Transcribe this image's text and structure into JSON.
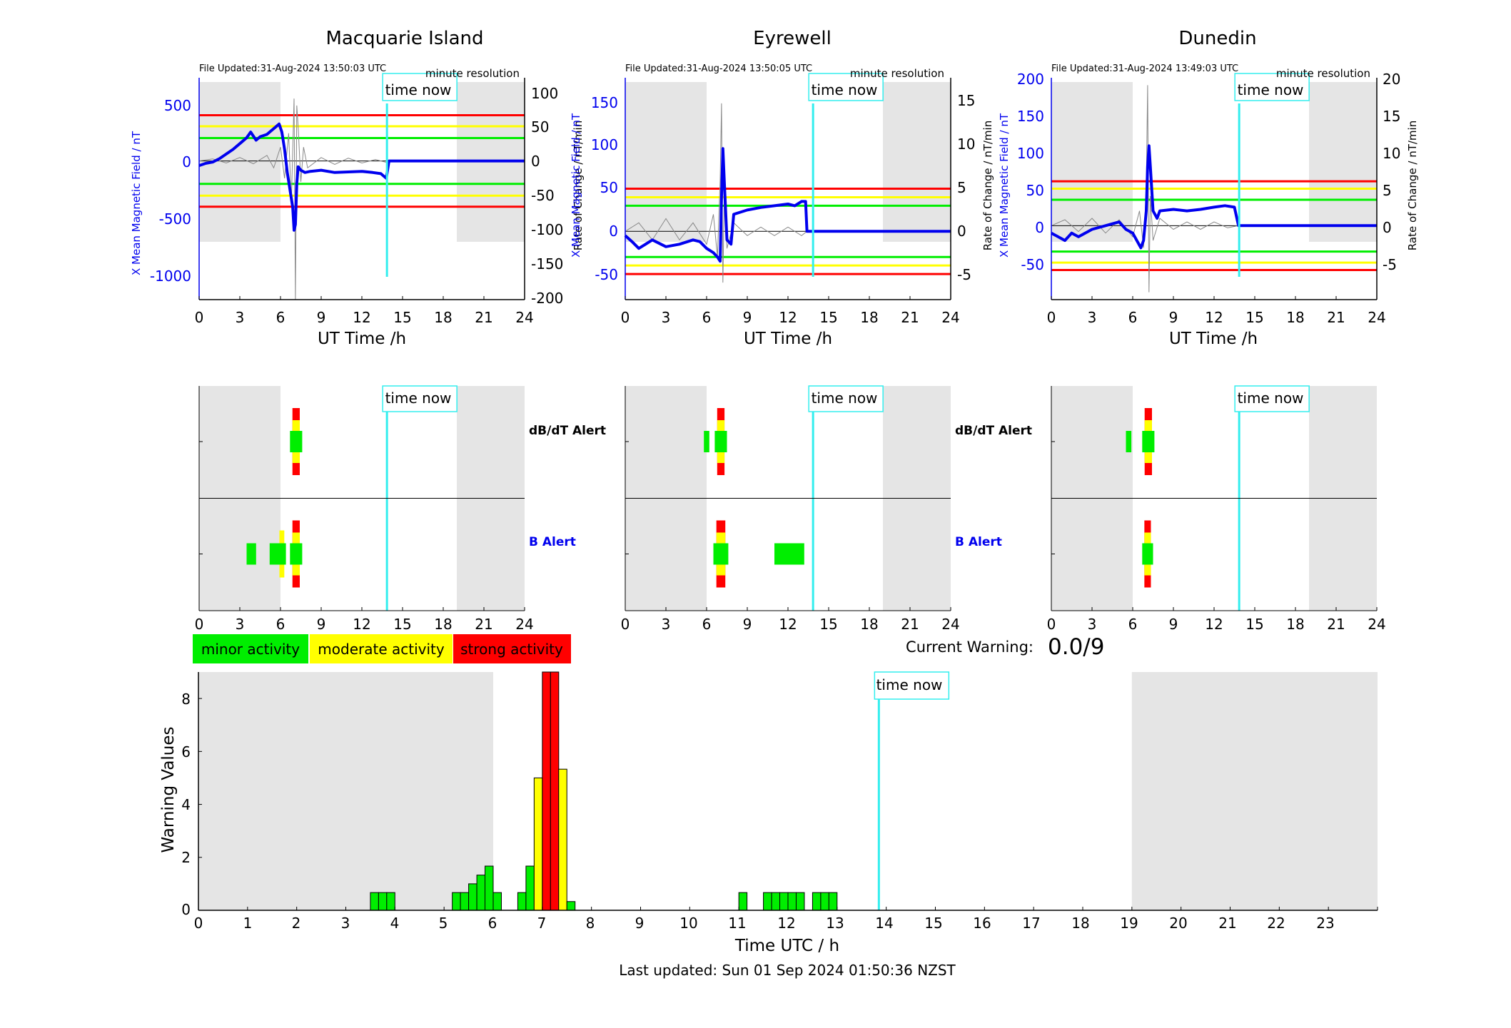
{
  "colors": {
    "minor": "#00ee00",
    "moderate": "#ffff00",
    "strong": "#ff0000",
    "field": "#0000ee",
    "timeNow": "#33eeee",
    "night": "#e5e5e5"
  },
  "stations": [
    {
      "name": "Macquarie Island",
      "file_updated": "File Updated:31-Aug-2024 13:50:03 UTC",
      "resolution": "minute resolution",
      "left_ylabel": "X Mean Magnetic Field / nT",
      "right_ylabel": "Rate of Change / nT/min",
      "xlabel": "UT Time /h",
      "time_now_label": "time now",
      "left_ticks": [
        "500",
        "0",
        "-500",
        "-1000"
      ],
      "right_ticks": [
        "100",
        "50",
        "0",
        "-50",
        "-100",
        "-150",
        "-200"
      ],
      "x_ticks": [
        "0",
        "3",
        "6",
        "9",
        "12",
        "15",
        "18",
        "21",
        "24"
      ]
    },
    {
      "name": "Eyrewell",
      "file_updated": "File Updated:31-Aug-2024 13:50:05 UTC",
      "resolution": "minute resolution",
      "left_ylabel": "X Mean Magnetic Field / nT",
      "right_ylabel": "Rate of Change / nT/min",
      "xlabel": "UT Time /h",
      "time_now_label": "time now",
      "left_ticks": [
        "150",
        "100",
        "50",
        "0",
        "-50"
      ],
      "right_ticks": [
        "15",
        "10",
        "5",
        "0",
        "-5"
      ],
      "x_ticks": [
        "0",
        "3",
        "6",
        "9",
        "12",
        "15",
        "18",
        "21",
        "24"
      ]
    },
    {
      "name": "Dunedin",
      "file_updated": "File Updated:31-Aug-2024 13:49:03 UTC",
      "resolution": "minute resolution",
      "left_ylabel": "X Mean Magnetic Field / nT",
      "right_ylabel": "Rate of Change / nT/min",
      "xlabel": "UT Time /h",
      "time_now_label": "time now",
      "left_ticks": [
        "200",
        "150",
        "100",
        "50",
        "0",
        "-50"
      ],
      "right_ticks": [
        "20",
        "15",
        "10",
        "5",
        "0",
        "-5"
      ],
      "x_ticks": [
        "0",
        "3",
        "6",
        "9",
        "12",
        "15",
        "18",
        "21",
        "24"
      ]
    }
  ],
  "alerts": {
    "dbdt_label": "dB/dT Alert",
    "b_label": "B Alert",
    "time_now_label": "time now",
    "x_ticks": [
      "0",
      "3",
      "6",
      "9",
      "12",
      "15",
      "18",
      "21",
      "24"
    ]
  },
  "legend": {
    "minor": "minor activity",
    "moderate": "moderate activity",
    "strong": "strong activity"
  },
  "current_warning": {
    "label": "Current Warning:",
    "value": "0.0/9"
  },
  "footer": "Last updated: Sun 01 Sep 2024 01:50:36 NZST",
  "chart_data": [
    {
      "type": "line",
      "title": "Macquarie Island",
      "xlabel": "UT Time /h",
      "ylabel": "X Mean Magnetic Field / nT",
      "ylabel_right": "Rate of Change / nT/min",
      "xlim": [
        0,
        24
      ],
      "ylim": [
        -1200,
        720
      ],
      "ylim_right": [
        -200,
        120
      ],
      "night_hours": [
        [
          0,
          6
        ],
        [
          19,
          24
        ]
      ],
      "time_now": 13.85,
      "thresholds_right": {
        "minor": 33,
        "moderate": 50,
        "strong": 66
      },
      "series": [
        {
          "kind": "field",
          "x": [
            0,
            0.5,
            1,
            1.5,
            2,
            2.5,
            3,
            3.5,
            3.8,
            4.2,
            4.5,
            5,
            5.3,
            5.6,
            5.9,
            6.1,
            6.3,
            6.5,
            6.7,
            6.9,
            7.0,
            7.1,
            7.2,
            7.3,
            7.5,
            7.8,
            8.2,
            9,
            10,
            11,
            12,
            12.8,
            13.4,
            13.8,
            14,
            24
          ],
          "y": [
            -40,
            -20,
            -10,
            20,
            60,
            100,
            150,
            200,
            250,
            180,
            210,
            230,
            260,
            290,
            320,
            250,
            100,
            -100,
            -250,
            -400,
            -600,
            -550,
            -200,
            -50,
            -80,
            -100,
            -90,
            -80,
            -100,
            -95,
            -90,
            -100,
            -110,
            -150,
            0,
            0
          ]
        },
        {
          "kind": "rate",
          "x": [
            0,
            1,
            2,
            3,
            4,
            5,
            5.5,
            6,
            6.3,
            6.6,
            6.8,
            7.0,
            7.1,
            7.2,
            7.3,
            7.5,
            7.7,
            8,
            9,
            10,
            11,
            12,
            13,
            13.8,
            14,
            24
          ],
          "y": [
            0,
            3,
            -3,
            5,
            -4,
            8,
            -10,
            20,
            -25,
            40,
            -60,
            90,
            -200,
            80,
            50,
            -30,
            20,
            -10,
            5,
            -5,
            4,
            -3,
            2,
            -2,
            0,
            0
          ]
        }
      ]
    },
    {
      "type": "line",
      "title": "Eyrewell",
      "xlabel": "UT Time /h",
      "ylabel": "X Mean Magnetic Field / nT",
      "ylabel_right": "Rate of Change / nT/min",
      "xlim": [
        0,
        24
      ],
      "ylim": [
        -80,
        180
      ],
      "ylim_right": [
        -8,
        18
      ],
      "night_hours": [
        [
          0,
          6
        ],
        [
          19,
          24
        ]
      ],
      "time_now": 13.85,
      "thresholds_right": {
        "minor": 3,
        "moderate": 4,
        "strong": 5
      },
      "series": [
        {
          "kind": "field",
          "x": [
            0,
            0.5,
            1,
            1.5,
            2,
            3,
            4,
            5,
            5.5,
            6,
            6.5,
            6.8,
            7.0,
            7.1,
            7.2,
            7.3,
            7.5,
            7.8,
            8,
            9,
            10,
            11,
            12,
            12.5,
            13,
            13.3,
            13.4,
            24
          ],
          "y": [
            -5,
            -12,
            -20,
            -15,
            -10,
            -18,
            -15,
            -10,
            -12,
            -20,
            -25,
            -30,
            -35,
            40,
            97,
            60,
            -10,
            -15,
            20,
            25,
            28,
            30,
            32,
            30,
            35,
            35,
            0,
            0
          ]
        },
        {
          "kind": "rate",
          "x": [
            0,
            1,
            2,
            3,
            4,
            5,
            6,
            6.5,
            6.8,
            7.0,
            7.1,
            7.2,
            7.3,
            7.5,
            8,
            9,
            10,
            11,
            12,
            13,
            13.4,
            24
          ],
          "y": [
            0,
            1,
            -1,
            1.5,
            -1,
            1,
            -1.5,
            2,
            -3,
            6,
            15,
            -6,
            4,
            -2,
            1,
            -0.5,
            0.5,
            -0.5,
            0.5,
            -0.5,
            0,
            0
          ]
        }
      ]
    },
    {
      "type": "line",
      "title": "Dunedin",
      "xlabel": "UT Time /h",
      "ylabel": "X Mean Magnetic Field / nT",
      "ylabel_right": "Rate of Change / nT/min",
      "xlim": [
        0,
        24
      ],
      "ylim": [
        -100,
        200
      ],
      "ylim_right": [
        -10,
        20
      ],
      "night_hours": [
        [
          0,
          6
        ],
        [
          19,
          24
        ]
      ],
      "time_now": 13.85,
      "thresholds_right": {
        "minor": 3.5,
        "moderate": 5,
        "strong": 6
      },
      "series": [
        {
          "kind": "field",
          "x": [
            0,
            0.5,
            1,
            1.5,
            2,
            3,
            4,
            5,
            5.5,
            6,
            6.3,
            6.6,
            6.8,
            7.0,
            7.1,
            7.2,
            7.3,
            7.5,
            7.8,
            8,
            9,
            10,
            11,
            12,
            12.8,
            13.5,
            13.8,
            24
          ],
          "y": [
            -10,
            -15,
            -20,
            -10,
            -15,
            -5,
            0,
            5,
            -5,
            -10,
            -20,
            -30,
            -20,
            20,
            80,
            108,
            80,
            20,
            10,
            20,
            22,
            20,
            22,
            25,
            27,
            25,
            0,
            0
          ]
        },
        {
          "kind": "rate",
          "x": [
            0,
            1,
            2,
            3,
            4,
            5,
            6,
            6.5,
            6.8,
            7.0,
            7.1,
            7.2,
            7.3,
            7.5,
            8,
            9,
            10,
            11,
            12,
            13,
            13.8,
            24
          ],
          "y": [
            0,
            0.8,
            -0.8,
            1,
            -1,
            0.8,
            -1.5,
            2,
            -3,
            5,
            19,
            -9,
            4,
            -2,
            1,
            -0.5,
            0.5,
            -0.5,
            0.5,
            -0.3,
            0,
            0
          ]
        }
      ]
    },
    {
      "type": "bar",
      "title": "",
      "xlabel": "Time UTC / h",
      "ylabel": "Warning Values",
      "xlim": [
        0,
        24
      ],
      "ylim": [
        0,
        9
      ],
      "night_hours": [
        [
          0,
          6
        ],
        [
          19,
          24
        ]
      ],
      "time_now": 13.85,
      "x": [
        3.5,
        3.667,
        3.833,
        5.167,
        5.333,
        5.5,
        5.667,
        5.833,
        6.0,
        6.5,
        6.667,
        6.833,
        7.0,
        7.167,
        7.333,
        7.5,
        11.0,
        11.5,
        11.667,
        11.833,
        12.0,
        12.167,
        12.5,
        12.667,
        12.833
      ],
      "values": [
        0.67,
        0.67,
        0.67,
        0.67,
        0.67,
        1.0,
        1.33,
        1.67,
        0.67,
        0.67,
        1.67,
        5.0,
        9.0,
        9.0,
        5.33,
        0.33,
        0.67,
        0.67,
        0.67,
        0.67,
        0.67,
        0.67,
        0.67,
        0.67,
        0.67
      ],
      "levels": [
        "minor",
        "minor",
        "minor",
        "minor",
        "minor",
        "minor",
        "minor",
        "minor",
        "minor",
        "minor",
        "minor",
        "moderate",
        "strong",
        "strong",
        "moderate",
        "minor",
        "minor",
        "minor",
        "minor",
        "minor",
        "minor",
        "minor",
        "minor",
        "minor",
        "minor"
      ],
      "x_ticks": [
        "0",
        "1",
        "2",
        "3",
        "4",
        "5",
        "6",
        "7",
        "8",
        "9",
        "10",
        "11",
        "12",
        "13",
        "14",
        "15",
        "16",
        "17",
        "18",
        "19",
        "20",
        "21",
        "22",
        "23"
      ],
      "y_ticks": [
        "0",
        "2",
        "4",
        "6",
        "8"
      ]
    }
  ],
  "alert_data": [
    {
      "dbdt": [
        {
          "start": 6.7,
          "end": 7.6,
          "level": "strong"
        }
      ],
      "b": [
        {
          "start": 3.5,
          "end": 4.2,
          "level": "minor"
        },
        {
          "start": 5.2,
          "end": 6.4,
          "level": "moderate"
        },
        {
          "start": 6.7,
          "end": 7.6,
          "level": "strong"
        }
      ]
    },
    {
      "dbdt": [
        {
          "start": 5.8,
          "end": 6.2,
          "level": "minor"
        },
        {
          "start": 6.6,
          "end": 7.5,
          "level": "strong"
        }
      ],
      "b": [
        {
          "start": 6.5,
          "end": 7.6,
          "level": "strong"
        },
        {
          "start": 11.0,
          "end": 13.2,
          "level": "minor"
        }
      ]
    },
    {
      "dbdt": [
        {
          "start": 5.5,
          "end": 5.9,
          "level": "minor"
        },
        {
          "start": 6.7,
          "end": 7.6,
          "level": "strong"
        }
      ],
      "b": [
        {
          "start": 6.7,
          "end": 7.5,
          "level": "strong"
        }
      ]
    }
  ]
}
